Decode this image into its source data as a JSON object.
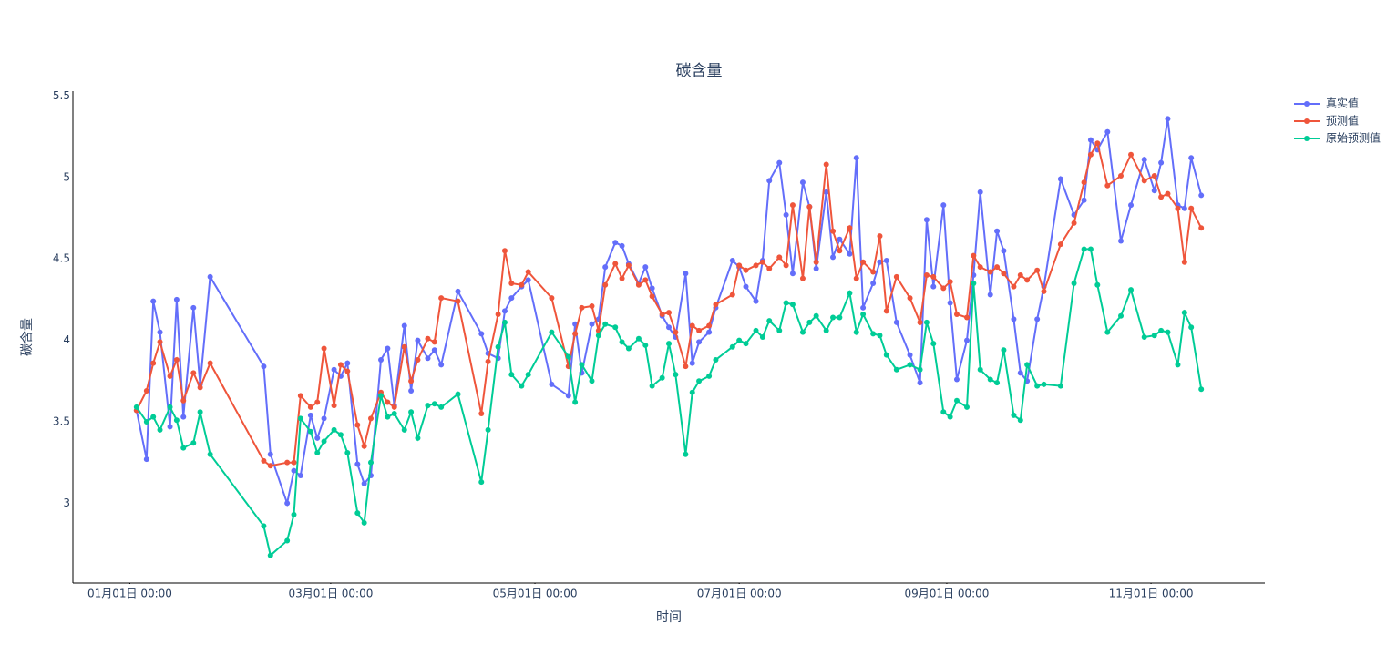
{
  "chart_data": {
    "type": "line",
    "title": "碳含量",
    "x_label": "时间",
    "y_label": "碳含量",
    "x": [
      "01-03",
      "01-06",
      "01-08",
      "01-10",
      "01-13",
      "01-15",
      "01-17",
      "01-20",
      "01-22",
      "01-25",
      "02-10",
      "02-12",
      "02-17",
      "02-19",
      "02-21",
      "02-24",
      "02-26",
      "02-28",
      "03-02",
      "03-04",
      "03-06",
      "03-09",
      "03-11",
      "03-13",
      "03-16",
      "03-18",
      "03-20",
      "03-23",
      "03-25",
      "03-27",
      "03-30",
      "04-01",
      "04-03",
      "04-08",
      "04-15",
      "04-17",
      "04-20",
      "04-22",
      "04-24",
      "04-27",
      "04-29",
      "05-06",
      "05-11",
      "05-13",
      "05-15",
      "05-18",
      "05-20",
      "05-22",
      "05-25",
      "05-27",
      "05-29",
      "06-01",
      "06-03",
      "06-05",
      "06-08",
      "06-10",
      "06-12",
      "06-15",
      "06-17",
      "06-19",
      "06-22",
      "06-24",
      "06-29",
      "07-01",
      "07-03",
      "07-06",
      "07-08",
      "07-10",
      "07-13",
      "07-15",
      "07-17",
      "07-20",
      "07-22",
      "07-24",
      "07-27",
      "07-29",
      "07-31",
      "08-03",
      "08-05",
      "08-07",
      "08-10",
      "08-12",
      "08-14",
      "08-17",
      "08-21",
      "08-24",
      "08-26",
      "08-28",
      "08-31",
      "09-02",
      "09-04",
      "09-07",
      "09-09",
      "09-11",
      "09-14",
      "09-16",
      "09-18",
      "09-21",
      "09-23",
      "09-25",
      "09-28",
      "09-30",
      "10-05",
      "10-09",
      "10-12",
      "10-14",
      "10-16",
      "10-19",
      "10-23",
      "10-26",
      "10-30",
      "11-02",
      "11-04",
      "11-06",
      "11-09",
      "11-11",
      "11-13",
      "11-16"
    ],
    "series": [
      {
        "name": "真实值",
        "color": "#636efa",
        "values": [
          3.57,
          3.27,
          4.24,
          4.05,
          3.47,
          4.25,
          3.53,
          4.2,
          3.73,
          4.39,
          3.84,
          3.3,
          3.0,
          3.2,
          3.17,
          3.54,
          3.4,
          3.52,
          3.82,
          3.78,
          3.86,
          3.24,
          3.12,
          3.17,
          3.88,
          3.95,
          3.6,
          4.09,
          3.69,
          4.0,
          3.89,
          3.94,
          3.85,
          4.3,
          4.04,
          3.92,
          3.89,
          4.18,
          4.26,
          4.33,
          4.37,
          3.73,
          3.66,
          4.1,
          3.8,
          4.1,
          4.13,
          4.45,
          4.6,
          4.58,
          4.47,
          4.35,
          4.45,
          4.32,
          4.15,
          4.08,
          4.02,
          4.41,
          3.86,
          3.99,
          4.05,
          4.2,
          4.49,
          4.45,
          4.33,
          4.24,
          4.49,
          4.98,
          5.09,
          4.77,
          4.41,
          4.97,
          4.82,
          4.44,
          4.91,
          4.51,
          4.62,
          4.53,
          5.12,
          4.2,
          4.35,
          4.48,
          4.49,
          4.11,
          3.91,
          3.74,
          4.74,
          4.33,
          4.83,
          4.23,
          3.76,
          4.0,
          4.4,
          4.91,
          4.28,
          4.67,
          4.55,
          4.13,
          3.8,
          3.75,
          4.13,
          4.33,
          4.99,
          4.77,
          4.86,
          5.23,
          5.17,
          5.28,
          4.61,
          4.83,
          5.11,
          4.92,
          5.09,
          5.36,
          4.83,
          4.81,
          5.12,
          4.89
        ]
      },
      {
        "name": "预测值",
        "color": "#ef553b",
        "values": [
          3.57,
          3.69,
          3.86,
          3.99,
          3.78,
          3.88,
          3.63,
          3.8,
          3.71,
          3.86,
          3.26,
          3.23,
          3.25,
          3.25,
          3.66,
          3.59,
          3.62,
          3.95,
          3.6,
          3.85,
          3.81,
          3.48,
          3.35,
          3.52,
          3.68,
          3.62,
          3.59,
          3.96,
          3.75,
          3.88,
          4.01,
          3.99,
          4.26,
          4.24,
          3.55,
          3.87,
          4.16,
          4.55,
          4.35,
          4.34,
          4.42,
          4.26,
          3.84,
          4.04,
          4.2,
          4.21,
          4.06,
          4.34,
          4.47,
          4.38,
          4.46,
          4.34,
          4.37,
          4.27,
          4.16,
          4.17,
          4.05,
          3.84,
          4.09,
          4.06,
          4.09,
          4.22,
          4.28,
          4.46,
          4.43,
          4.46,
          4.48,
          4.44,
          4.51,
          4.46,
          4.83,
          4.38,
          4.82,
          4.48,
          5.08,
          4.67,
          4.55,
          4.69,
          4.38,
          4.48,
          4.42,
          4.64,
          4.18,
          4.39,
          4.26,
          4.11,
          4.4,
          4.39,
          4.32,
          4.36,
          4.16,
          4.14,
          4.52,
          4.45,
          4.42,
          4.45,
          4.41,
          4.33,
          4.4,
          4.37,
          4.43,
          4.3,
          4.59,
          4.72,
          4.97,
          5.14,
          5.21,
          4.95,
          5.01,
          5.14,
          4.98,
          5.01,
          4.88,
          4.9,
          4.81,
          4.48,
          4.81,
          4.69
        ]
      },
      {
        "name": "原始预测值",
        "color": "#00cc96",
        "values": [
          3.59,
          3.5,
          3.53,
          3.45,
          3.59,
          3.51,
          3.34,
          3.37,
          3.56,
          3.3,
          2.86,
          2.68,
          2.77,
          2.93,
          3.52,
          3.44,
          3.31,
          3.38,
          3.45,
          3.42,
          3.31,
          2.94,
          2.88,
          3.25,
          3.66,
          3.53,
          3.55,
          3.45,
          3.56,
          3.4,
          3.6,
          3.61,
          3.59,
          3.67,
          3.13,
          3.45,
          3.96,
          4.11,
          3.79,
          3.72,
          3.79,
          4.05,
          3.9,
          3.62,
          3.85,
          3.75,
          4.03,
          4.1,
          4.08,
          3.99,
          3.95,
          4.01,
          3.97,
          3.72,
          3.77,
          3.98,
          3.79,
          3.3,
          3.68,
          3.75,
          3.78,
          3.88,
          3.96,
          4.0,
          3.98,
          4.06,
          4.02,
          4.12,
          4.06,
          4.23,
          4.22,
          4.05,
          4.11,
          4.15,
          4.06,
          4.14,
          4.14,
          4.29,
          4.05,
          4.16,
          4.04,
          4.03,
          3.91,
          3.82,
          3.85,
          3.82,
          4.11,
          3.98,
          3.56,
          3.53,
          3.63,
          3.59,
          4.35,
          3.82,
          3.76,
          3.74,
          3.94,
          3.54,
          3.51,
          3.85,
          3.72,
          3.73,
          3.72,
          4.35,
          4.56,
          4.56,
          4.34,
          4.05,
          4.15,
          4.31,
          4.02,
          4.03,
          4.06,
          4.05,
          3.85,
          4.17,
          4.08,
          3.7
        ]
      }
    ],
    "xlim": [
      "12-15",
      "12-05"
    ],
    "xticks": [
      {
        "value": "01-01",
        "label": "01月01日 00:00"
      },
      {
        "value": "03-01",
        "label": "03月01日 00:00"
      },
      {
        "value": "05-01",
        "label": "05月01日 00:00"
      },
      {
        "value": "07-01",
        "label": "07月01日 00:00"
      },
      {
        "value": "09-01",
        "label": "09月01日 00:00"
      },
      {
        "value": "11-01",
        "label": "11月01日 00:00"
      }
    ],
    "ylim": [
      2.51,
      5.53
    ],
    "yticks": [
      3,
      3.5,
      4,
      4.5,
      5,
      5.5
    ],
    "grid": false,
    "legend": "right"
  }
}
